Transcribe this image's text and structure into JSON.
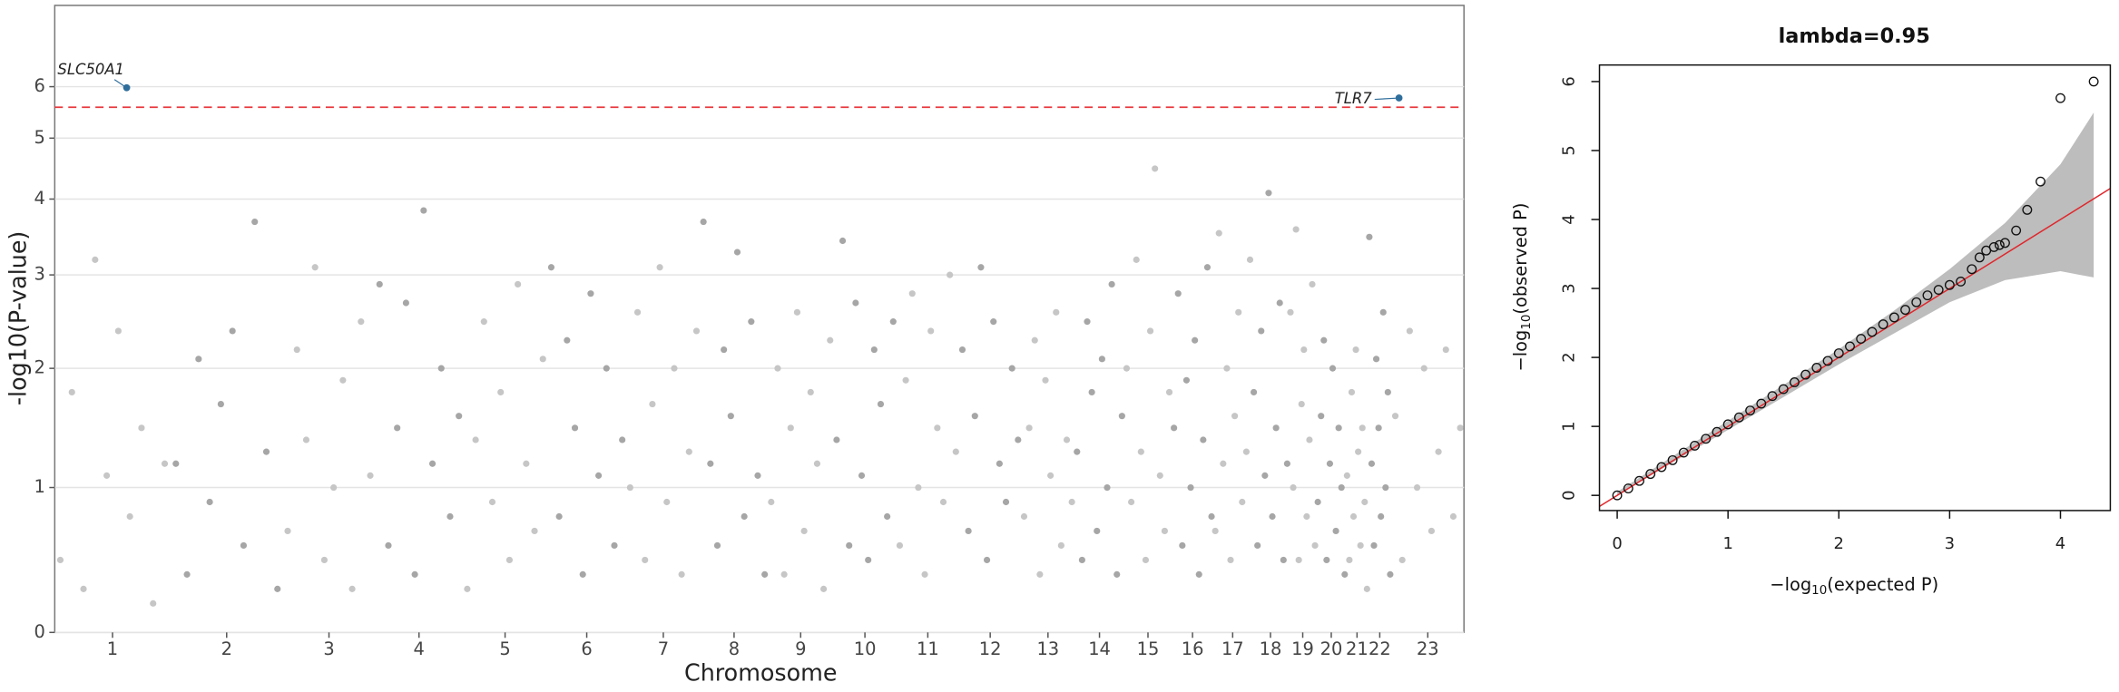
{
  "chart_data": [
    {
      "type": "manhattan",
      "x_label": "Chromosome",
      "y_label": "-log10(P-value)",
      "xlim": [
        0,
        3037
      ],
      "ylim": [
        0,
        7.6
      ],
      "xticks": [
        {
          "value": 124.5,
          "label": "1"
        },
        {
          "value": 370.5,
          "label": "2"
        },
        {
          "value": 591,
          "label": "3"
        },
        {
          "value": 785,
          "label": "4"
        },
        {
          "value": 970.5,
          "label": "5"
        },
        {
          "value": 1146.5,
          "label": "6"
        },
        {
          "value": 1311.5,
          "label": "7"
        },
        {
          "value": 1464,
          "label": "8"
        },
        {
          "value": 1607.5,
          "label": "9"
        },
        {
          "value": 1746,
          "label": "10"
        },
        {
          "value": 1881.5,
          "label": "11"
        },
        {
          "value": 2016,
          "label": "12"
        },
        {
          "value": 2140.5,
          "label": "13"
        },
        {
          "value": 2251.5,
          "label": "14"
        },
        {
          "value": 2356,
          "label": "15"
        },
        {
          "value": 2452,
          "label": "16"
        },
        {
          "value": 2538.5,
          "label": "17"
        },
        {
          "value": 2620,
          "label": "18"
        },
        {
          "value": 2689.5,
          "label": "19"
        },
        {
          "value": 2751,
          "label": "20"
        },
        {
          "value": 2806.5,
          "label": "21"
        },
        {
          "value": 2855.5,
          "label": "22"
        },
        {
          "value": 2959,
          "label": "23"
        }
      ],
      "yticks": [
        0,
        1,
        2,
        3,
        4,
        5,
        6
      ],
      "grid": true,
      "colors": [
        "#c6c6c6",
        "#a6a6a6"
      ],
      "threshold": 5.6,
      "threshold_color": "#e8383d",
      "highlight_color": "#2f6e9c",
      "highlights": [
        {
          "label": "SLC50A1",
          "x": 155,
          "value": 5.98
        },
        {
          "label": "TLR7",
          "x": 2897,
          "value": 5.78
        }
      ],
      "series": [
        {
          "x": [
            12,
            37,
            62,
            87,
            112,
            137,
            162,
            187,
            212,
            237
          ],
          "values": [
            0.5,
            1.8,
            0.3,
            3.2,
            1.1,
            2.4,
            0.8,
            1.5,
            0.2,
            1.2
          ]
        },
        {
          "x": [
            261,
            285,
            310,
            334,
            358,
            383,
            407,
            431,
            456,
            480
          ],
          "values": [
            1.2,
            0.4,
            2.1,
            0.9,
            1.7,
            2.4,
            0.6,
            3.7,
            1.3,
            0.3
          ]
        },
        {
          "x": [
            502,
            522,
            542,
            561,
            581,
            601,
            621,
            641,
            660,
            680
          ],
          "values": [
            0.7,
            2.2,
            1.4,
            3.1,
            0.5,
            1.0,
            1.9,
            0.3,
            2.5,
            1.1
          ]
        },
        {
          "x": [
            700,
            719,
            738,
            757,
            776,
            795,
            814,
            833,
            852,
            871
          ],
          "values": [
            2.9,
            0.6,
            1.5,
            2.7,
            0.4,
            3.85,
            1.2,
            2.0,
            0.8,
            1.6
          ]
        },
        {
          "x": [
            889,
            907,
            925,
            943,
            961,
            980,
            998,
            1016,
            1034,
            1052
          ],
          "values": [
            0.3,
            1.4,
            2.5,
            0.9,
            1.8,
            0.5,
            2.9,
            1.2,
            0.7,
            2.1
          ]
        },
        {
          "x": [
            1070,
            1087,
            1104,
            1121,
            1138,
            1155,
            1172,
            1189,
            1206,
            1223
          ],
          "values": [
            3.1,
            0.8,
            2.3,
            1.5,
            0.4,
            2.8,
            1.1,
            2.0,
            0.6,
            1.4
          ]
        },
        {
          "x": [
            1240,
            1256,
            1272,
            1288,
            1304,
            1319,
            1335,
            1351,
            1367,
            1383
          ],
          "values": [
            1.0,
            2.6,
            0.5,
            1.7,
            3.1,
            0.9,
            2.0,
            0.4,
            1.3,
            2.4
          ]
        },
        {
          "x": [
            1398,
            1413,
            1428,
            1442,
            1457,
            1471,
            1486,
            1501,
            1515,
            1530
          ],
          "values": [
            3.7,
            1.2,
            0.6,
            2.2,
            1.6,
            3.3,
            0.8,
            2.5,
            1.1,
            0.4
          ]
        },
        {
          "x": [
            1544,
            1558,
            1572,
            1586,
            1600,
            1615,
            1629,
            1643,
            1657,
            1671
          ],
          "values": [
            0.9,
            2.0,
            0.4,
            1.5,
            2.6,
            0.7,
            1.8,
            1.2,
            0.3,
            2.3
          ]
        },
        {
          "x": [
            1685,
            1698,
            1712,
            1726,
            1739,
            1753,
            1766,
            1780,
            1794,
            1807
          ],
          "values": [
            1.4,
            3.45,
            0.6,
            2.7,
            1.1,
            0.5,
            2.2,
            1.7,
            0.8,
            2.5
          ]
        },
        {
          "x": [
            1821,
            1834,
            1848,
            1861,
            1875,
            1888,
            1902,
            1915,
            1929,
            1942
          ],
          "values": [
            0.6,
            1.9,
            2.8,
            1.0,
            0.4,
            2.4,
            1.5,
            0.9,
            3.0,
            1.3
          ]
        },
        {
          "x": [
            1956,
            1969,
            1983,
            1996,
            2009,
            2023,
            2036,
            2050,
            2063,
            2076
          ],
          "values": [
            2.2,
            0.7,
            1.6,
            3.1,
            0.5,
            2.5,
            1.2,
            0.9,
            2.0,
            1.4
          ]
        },
        {
          "x": [
            2089,
            2100,
            2112,
            2123,
            2135,
            2146,
            2158,
            2169,
            2181,
            2192
          ],
          "values": [
            0.8,
            1.5,
            2.3,
            0.4,
            1.9,
            1.1,
            2.6,
            0.6,
            1.4,
            0.9
          ]
        },
        {
          "x": [
            2203,
            2214,
            2225,
            2235,
            2246,
            2257,
            2268,
            2278,
            2289,
            2300
          ],
          "values": [
            1.3,
            0.5,
            2.5,
            1.8,
            0.7,
            2.1,
            1.0,
            2.9,
            0.4,
            1.6
          ]
        },
        {
          "x": [
            2310,
            2320,
            2331,
            2341,
            2351,
            2361,
            2371,
            2382,
            2392,
            2402
          ],
          "values": [
            2.0,
            0.9,
            3.2,
            1.3,
            0.5,
            2.4,
            4.5,
            1.1,
            0.7,
            1.8
          ]
        },
        {
          "x": [
            2412,
            2421,
            2430,
            2439,
            2448,
            2457,
            2466,
            2475,
            2484,
            2493
          ],
          "values": [
            1.5,
            2.8,
            0.6,
            1.9,
            1.0,
            2.3,
            0.4,
            1.4,
            3.1,
            0.8
          ]
        },
        {
          "x": [
            2501,
            2509,
            2518,
            2526,
            2534,
            2543,
            2551,
            2559,
            2568,
            2576
          ],
          "values": [
            0.7,
            3.55,
            1.2,
            2.0,
            0.5,
            1.6,
            2.6,
            0.9,
            1.3,
            3.2
          ]
        },
        {
          "x": [
            2584,
            2592,
            2600,
            2608,
            2616,
            2624,
            2632,
            2640,
            2648,
            2656
          ],
          "values": [
            1.8,
            0.6,
            2.4,
            1.1,
            4.1,
            0.8,
            1.5,
            2.7,
            0.5,
            1.2
          ]
        },
        {
          "x": [
            2663,
            2669,
            2675,
            2681,
            2687,
            2692,
            2698,
            2704,
            2710,
            2716
          ],
          "values": [
            2.6,
            1.0,
            3.6,
            0.5,
            1.7,
            2.2,
            0.8,
            1.4,
            2.9,
            0.6
          ]
        },
        {
          "x": [
            2722,
            2729,
            2735,
            2741,
            2748,
            2754,
            2761,
            2767,
            2773,
            2780
          ],
          "values": [
            0.9,
            1.6,
            2.3,
            0.5,
            1.2,
            2.0,
            0.7,
            1.5,
            1.0,
            0.4
          ]
        },
        {
          "x": [
            2785,
            2790,
            2795,
            2799,
            2804,
            2809,
            2814,
            2818,
            2823,
            2828
          ],
          "values": [
            1.1,
            0.5,
            1.8,
            0.8,
            2.2,
            1.3,
            0.6,
            1.5,
            0.9,
            0.3
          ]
        },
        {
          "x": [
            2833,
            2838,
            2843,
            2848,
            2853,
            2858,
            2863,
            2868,
            2873,
            2878
          ],
          "values": [
            3.5,
            1.2,
            0.6,
            2.1,
            1.5,
            0.8,
            2.6,
            1.0,
            1.8,
            0.4
          ]
        },
        {
          "x": [
            2889,
            2904,
            2920,
            2936,
            2951,
            2967,
            2982,
            2998,
            3014,
            3029
          ],
          "values": [
            1.6,
            0.5,
            2.4,
            1.0,
            2.0,
            0.7,
            1.3,
            2.2,
            0.8,
            1.5
          ]
        }
      ]
    },
    {
      "type": "qq",
      "title": "lambda=0.95",
      "x_label": {
        "main": "−log",
        "sub": "10",
        "rest": "(expected P)"
      },
      "y_label": {
        "main": "−log",
        "sub": "10",
        "rest": "(observed P)"
      },
      "xlim": [
        -0.16,
        4.45
      ],
      "ylim": [
        -0.22,
        6.24
      ],
      "xticks": [
        0,
        1,
        2,
        3,
        4
      ],
      "yticks": [
        0,
        1,
        2,
        3,
        4,
        5,
        6
      ],
      "line_color": "#e0262b",
      "band_color": "#bdbdbd",
      "band": {
        "x": [
          0,
          1,
          2,
          2.5,
          3,
          3.5,
          4,
          4.3
        ],
        "upper": [
          0.05,
          1.08,
          2.12,
          2.68,
          3.28,
          3.95,
          4.8,
          5.55
        ],
        "lower": [
          0,
          0.95,
          1.9,
          2.35,
          2.8,
          3.12,
          3.25,
          3.16
        ]
      },
      "x": [
        0,
        0.1,
        0.2,
        0.3,
        0.4,
        0.5,
        0.6,
        0.7,
        0.8,
        0.9,
        1.0,
        1.1,
        1.2,
        1.3,
        1.4,
        1.5,
        1.6,
        1.7,
        1.8,
        1.9,
        2.0,
        2.1,
        2.2,
        2.3,
        2.4,
        2.5,
        2.6,
        2.7,
        2.8,
        2.9,
        3.0,
        3.1,
        3.2,
        3.27,
        3.33,
        3.4,
        3.45,
        3.5,
        3.6,
        3.7,
        3.82,
        4.0,
        4.3
      ],
      "values": [
        0,
        0.1,
        0.21,
        0.31,
        0.41,
        0.51,
        0.62,
        0.72,
        0.82,
        0.92,
        1.03,
        1.13,
        1.23,
        1.33,
        1.44,
        1.54,
        1.64,
        1.75,
        1.85,
        1.95,
        2.06,
        2.16,
        2.27,
        2.37,
        2.48,
        2.58,
        2.69,
        2.8,
        2.9,
        2.98,
        3.05,
        3.1,
        3.28,
        3.45,
        3.55,
        3.6,
        3.63,
        3.66,
        3.84,
        4.14,
        4.55,
        5.76,
        6.0
      ]
    }
  ]
}
